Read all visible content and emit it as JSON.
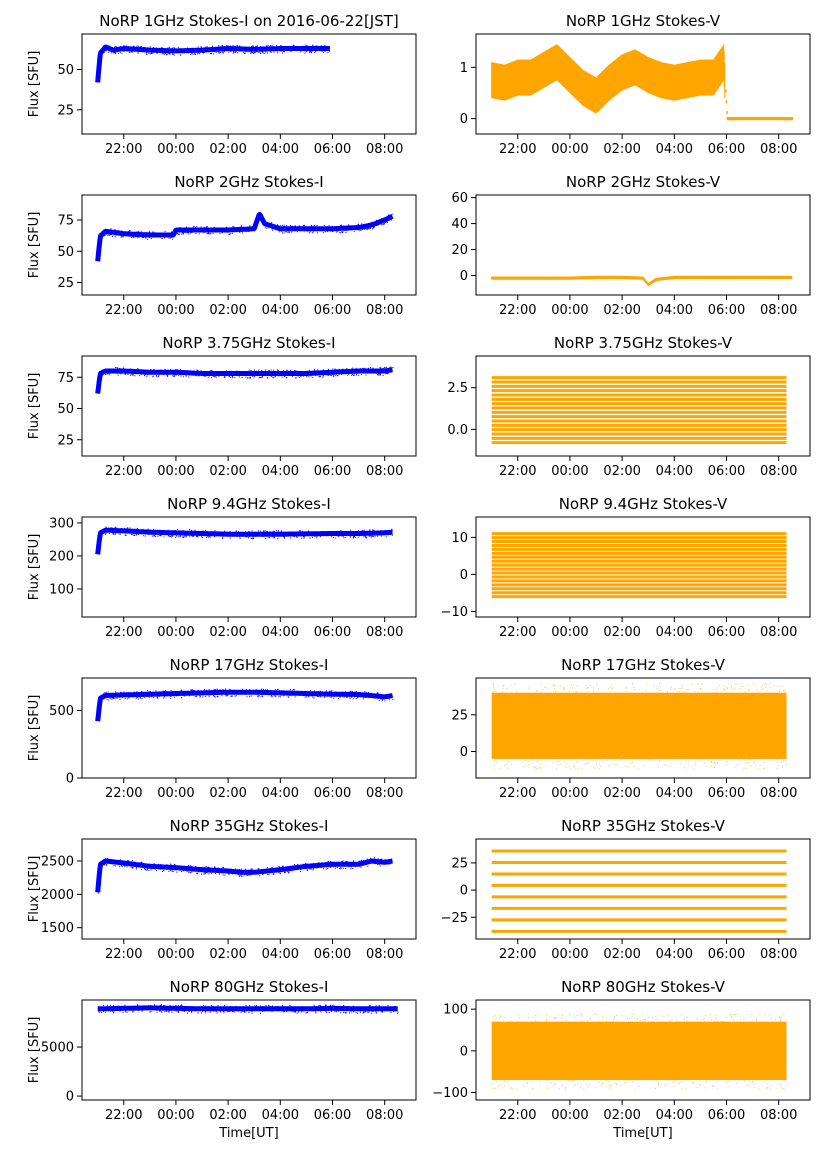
{
  "chart_data": [
    {
      "type": "scatter",
      "title": "NoRP 1GHz Stokes-I on 2016-06-22[JST]",
      "ylabel": "Flux [SFU]",
      "xlabel": "",
      "color": "#0000ff",
      "ylim": [
        10,
        72
      ],
      "yticks": [
        {
          "value": 25,
          "label": "25"
        },
        {
          "value": 50,
          "label": "50"
        }
      ],
      "series": [
        {
          "x": [
            21.0,
            21.1,
            21.3,
            21.6,
            22.0,
            23.0,
            24.0,
            25.0,
            26.0,
            27.0,
            28.0,
            29.0,
            29.9
          ],
          "y": [
            42,
            60,
            64,
            62,
            63,
            62,
            61.5,
            62,
            63,
            62.5,
            63,
            63,
            63
          ]
        }
      ]
    },
    {
      "type": "scatter",
      "title": "NoRP 1GHz Stokes-V",
      "ylabel": "",
      "xlabel": "",
      "color": "#ffa500",
      "ylim": [
        -0.3,
        1.65
      ],
      "yticks": [
        {
          "value": 0,
          "label": "0"
        },
        {
          "value": 1,
          "label": "1"
        }
      ],
      "series": [
        {
          "x": [
            21.0,
            21.5,
            22.0,
            22.5,
            23.0,
            23.5,
            24.0,
            24.5,
            25.0,
            25.5,
            26.0,
            26.5,
            27.0,
            27.5,
            28.0,
            28.5,
            29.0,
            29.5,
            29.9,
            30.0,
            31.0,
            32.0,
            32.5
          ],
          "y": [
            0.75,
            0.7,
            0.8,
            0.8,
            0.95,
            1.1,
            0.85,
            0.6,
            0.45,
            0.7,
            0.9,
            1.0,
            0.85,
            0.75,
            0.7,
            0.75,
            0.8,
            0.8,
            1.1,
            0,
            0,
            0,
            0
          ]
        }
      ]
    },
    {
      "type": "scatter",
      "title": "NoRP 2GHz Stokes-I",
      "ylabel": "Flux [SFU]",
      "xlabel": "",
      "color": "#0000ff",
      "ylim": [
        15,
        95
      ],
      "yticks": [
        {
          "value": 25,
          "label": "25"
        },
        {
          "value": 50,
          "label": "50"
        },
        {
          "value": 75,
          "label": "75"
        }
      ],
      "series": [
        {
          "x": [
            21.0,
            21.1,
            21.3,
            22.0,
            23.0,
            23.9,
            24.0,
            25.0,
            26.0,
            27.0,
            27.2,
            27.4,
            28.0,
            29.0,
            30.0,
            31.0,
            31.5,
            32.0,
            32.3
          ],
          "y": [
            42,
            62,
            66,
            64,
            63,
            63,
            67,
            67,
            67,
            68,
            80,
            72,
            68,
            68,
            68,
            69,
            71,
            75,
            78
          ]
        }
      ]
    },
    {
      "type": "scatter",
      "title": "NoRP 2GHz Stokes-V",
      "ylabel": "",
      "xlabel": "",
      "color": "#ffa500",
      "ylim": [
        -15,
        62
      ],
      "yticks": [
        {
          "value": 0,
          "label": "0"
        },
        {
          "value": 20,
          "label": "20"
        },
        {
          "value": 40,
          "label": "40"
        },
        {
          "value": 60,
          "label": "60"
        }
      ],
      "series": [
        {
          "x": [
            21.0,
            22.0,
            23.0,
            24.0,
            25.0,
            26.0,
            26.8,
            27.0,
            27.3,
            28.0,
            29.0,
            30.0,
            31.0,
            32.0,
            32.5
          ],
          "y": [
            -2,
            -2,
            -2,
            -2,
            -1.5,
            -1.5,
            -2,
            -7,
            -3,
            -1.5,
            -1.5,
            -1.5,
            -1.5,
            -1.5,
            -1.5
          ]
        }
      ]
    },
    {
      "type": "scatter",
      "title": "NoRP 3.75GHz Stokes-I",
      "ylabel": "Flux [SFU]",
      "xlabel": "",
      "color": "#0000ff",
      "ylim": [
        12,
        92
      ],
      "yticks": [
        {
          "value": 25,
          "label": "25"
        },
        {
          "value": 50,
          "label": "50"
        },
        {
          "value": 75,
          "label": "75"
        }
      ],
      "series": [
        {
          "x": [
            21.0,
            21.1,
            21.3,
            22.0,
            23.0,
            24.0,
            25.0,
            26.0,
            27.0,
            28.0,
            29.0,
            30.0,
            31.0,
            32.0,
            32.3
          ],
          "y": [
            62,
            78,
            80,
            80,
            79,
            79,
            78,
            78,
            78,
            78,
            78,
            79,
            80,
            80,
            81
          ]
        }
      ]
    },
    {
      "type": "scatter",
      "title": "NoRP 3.75GHz Stokes-V",
      "ylabel": "",
      "xlabel": "",
      "color": "#ffa500",
      "ylim": [
        -1.6,
        4.4
      ],
      "yticks": [
        {
          "value": 0,
          "label": "0.0"
        },
        {
          "value": 2.5,
          "label": "2.5"
        }
      ],
      "series": [
        {
          "x": [
            21.0,
            32.3
          ],
          "y": [
            -0.8,
            3.1
          ]
        }
      ]
    },
    {
      "type": "scatter",
      "title": "NoRP 9.4GHz Stokes-I",
      "ylabel": "Flux [SFU]",
      "xlabel": "",
      "color": "#0000ff",
      "ylim": [
        15,
        318
      ],
      "yticks": [
        {
          "value": 100,
          "label": "100"
        },
        {
          "value": 200,
          "label": "200"
        },
        {
          "value": 300,
          "label": "300"
        }
      ],
      "series": [
        {
          "x": [
            21.0,
            21.1,
            21.3,
            22.0,
            23.0,
            24.0,
            25.0,
            26.0,
            27.0,
            28.0,
            29.0,
            30.0,
            31.0,
            32.0,
            32.3
          ],
          "y": [
            205,
            270,
            278,
            276,
            272,
            270,
            268,
            266,
            266,
            266,
            267,
            268,
            268,
            270,
            272
          ]
        }
      ]
    },
    {
      "type": "scatter",
      "title": "NoRP 9.4GHz Stokes-V",
      "ylabel": "",
      "xlabel": "",
      "color": "#ffa500",
      "ylim": [
        -11.5,
        15.5
      ],
      "yticks": [
        {
          "value": -10,
          "label": "−10"
        },
        {
          "value": 0,
          "label": "0"
        },
        {
          "value": 10,
          "label": "10"
        }
      ],
      "series": [
        {
          "x": [
            21.0,
            32.3
          ],
          "y": [
            -6,
            11
          ]
        }
      ]
    },
    {
      "type": "scatter",
      "title": "NoRP 17GHz Stokes-I",
      "ylabel": "Flux [SFU]",
      "xlabel": "",
      "color": "#0000ff",
      "ylim": [
        0,
        740
      ],
      "yticks": [
        {
          "value": 0,
          "label": "0"
        },
        {
          "value": 500,
          "label": "500"
        }
      ],
      "series": [
        {
          "x": [
            21.0,
            21.1,
            21.3,
            22.0,
            23.0,
            24.0,
            25.0,
            26.0,
            27.0,
            28.0,
            29.0,
            30.0,
            31.0,
            31.5,
            32.0,
            32.3
          ],
          "y": [
            420,
            590,
            610,
            615,
            620,
            625,
            630,
            635,
            635,
            630,
            625,
            620,
            618,
            610,
            600,
            610
          ]
        }
      ]
    },
    {
      "type": "scatter",
      "title": "NoRP 17GHz Stokes-V",
      "ylabel": "",
      "xlabel": "",
      "color": "#ffa500",
      "ylim": [
        -18,
        50
      ],
      "yticks": [
        {
          "value": 0,
          "label": "0"
        },
        {
          "value": 25,
          "label": "25"
        }
      ],
      "series": [
        {
          "x": [
            21.0,
            32.3
          ],
          "y": [
            -5,
            40
          ]
        }
      ]
    },
    {
      "type": "scatter",
      "title": "NoRP 35GHz Stokes-I",
      "ylabel": "Flux [SFU]",
      "xlabel": "",
      "color": "#0000ff",
      "ylim": [
        1330,
        2830
      ],
      "yticks": [
        {
          "value": 1500,
          "label": "1500"
        },
        {
          "value": 2000,
          "label": "2000"
        },
        {
          "value": 2500,
          "label": "2500"
        }
      ],
      "series": [
        {
          "x": [
            21.0,
            21.1,
            21.3,
            22.0,
            23.0,
            24.0,
            25.0,
            26.0,
            26.5,
            27.0,
            28.0,
            29.0,
            30.0,
            31.0,
            31.5,
            32.0,
            32.3
          ],
          "y": [
            2030,
            2450,
            2500,
            2470,
            2420,
            2400,
            2370,
            2350,
            2330,
            2330,
            2370,
            2420,
            2450,
            2450,
            2500,
            2480,
            2500
          ]
        }
      ]
    },
    {
      "type": "scatter",
      "title": "NoRP 35GHz Stokes-V",
      "ylabel": "",
      "xlabel": "",
      "color": "#ffa500",
      "ylim": [
        -45,
        47
      ],
      "yticks": [
        {
          "value": -25,
          "label": "−25"
        },
        {
          "value": 0,
          "label": "0"
        },
        {
          "value": 25,
          "label": "25"
        }
      ],
      "series": [
        {
          "x": [
            21.0,
            32.3
          ],
          "y": [
            -38,
            36
          ]
        }
      ]
    },
    {
      "type": "scatter",
      "title": "NoRP 80GHz Stokes-I",
      "ylabel": "Flux [SFU]",
      "xlabel": "Time[UT]",
      "color": "#0000ff",
      "ylim": [
        -400,
        9800
      ],
      "yticks": [
        {
          "value": 0,
          "label": "0"
        },
        {
          "value": 5000,
          "label": "5000"
        }
      ],
      "series": [
        {
          "x": [
            21.0,
            22.0,
            23.0,
            24.0,
            25.0,
            26.0,
            27.0,
            28.0,
            29.0,
            30.0,
            31.0,
            32.0,
            32.5
          ],
          "y": [
            8900,
            8950,
            9000,
            8950,
            8900,
            8900,
            8900,
            8900,
            8900,
            8950,
            8900,
            8900,
            8900
          ]
        }
      ]
    },
    {
      "type": "scatter",
      "title": "NoRP 80GHz Stokes-V",
      "ylabel": "",
      "xlabel": "Time[UT]",
      "color": "#ffa500",
      "ylim": [
        -118,
        122
      ],
      "yticks": [
        {
          "value": -100,
          "label": "−100"
        },
        {
          "value": 0,
          "label": "0"
        },
        {
          "value": 100,
          "label": "100"
        }
      ],
      "series": [
        {
          "x": [
            21.0,
            32.3
          ],
          "y": [
            -70,
            70
          ]
        }
      ]
    }
  ],
  "x_axis": {
    "xlim": [
      20.4,
      33.2
    ],
    "ticks": [
      {
        "value": 22,
        "label": "22:00"
      },
      {
        "value": 24,
        "label": "00:00"
      },
      {
        "value": 26,
        "label": "02:00"
      },
      {
        "value": 28,
        "label": "04:00"
      },
      {
        "value": 30,
        "label": "06:00"
      },
      {
        "value": 32,
        "label": "08:00"
      }
    ]
  }
}
